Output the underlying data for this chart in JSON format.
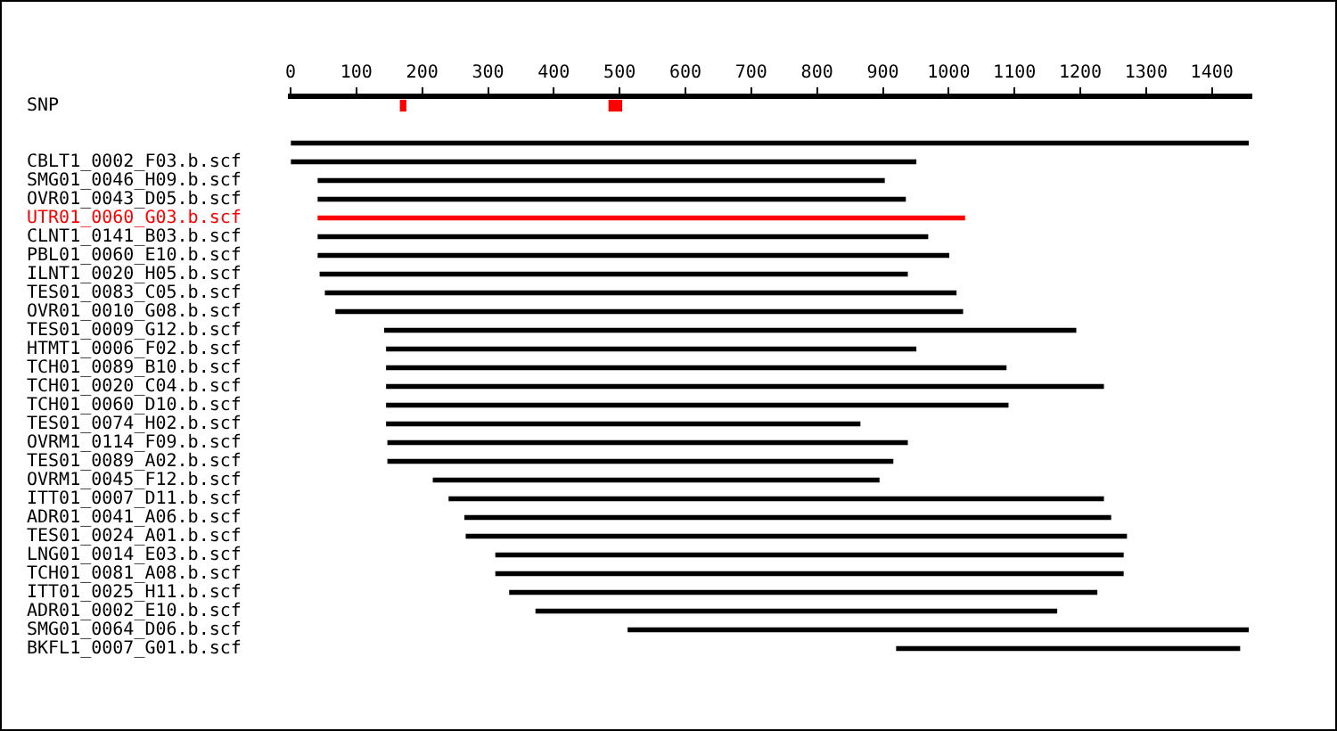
{
  "chart_data": {
    "type": "bar",
    "orientation": "horizontal",
    "grid": false,
    "legend": false,
    "categories": [
      "SNP",
      null,
      null,
      "CBLT1_0002_F03.b.scf",
      "SMG01_0046_H09.b.scf",
      "OVR01_0043_D05.b.scf",
      "UTR01_0060_G03.b.scf",
      "CLNT1_0141_B03.b.scf",
      "PBL01_0060_E10.b.scf",
      "ILNT1_0020_H05.b.scf",
      "TES01_0083_C05.b.scf",
      "OVR01_0010_G08.b.scf",
      "TES01_0009_G12.b.scf",
      "HTMT1_0006_F02.b.scf",
      "TCH01_0089_B10.b.scf",
      "TCH01_0020_C04.b.scf",
      "TCH01_0060_D10.b.scf",
      "TES01_0074_H02.b.scf",
      "OVRM1_0114_F09.b.scf",
      "TES01_0089_A02.b.scf",
      "OVRM1_0045_F12.b.scf",
      "ITT01_0007_D11.b.scf",
      "ADR01_0041_A06.b.scf",
      "TES01_0024_A01.b.scf",
      "LNG01_0014_E03.b.scf",
      "TCH01_0081_A08.b.scf",
      "ITT01_0025_H11.b.scf",
      "ADR01_0002_E10.b.scf",
      "SMG01_0064_D06.b.scf",
      "BKFL1_0007_G01.b.scf"
    ],
    "series": [
      {
        "colors": [
          "#000000",
          "#000000",
          "#000000",
          "#000000",
          "#000000",
          "#000000",
          "#ff0000",
          "#000000",
          "#000000",
          "#000000",
          "#000000",
          "#000000",
          "#000000",
          "#000000",
          "#000000",
          "#000000",
          "#000000",
          "#000000",
          "#000000",
          "#000000",
          "#000000",
          "#000000",
          "#000000",
          "#000000",
          "#000000",
          "#000000",
          "#000000",
          "#000000",
          "#000000",
          "#000000"
        ],
        "base": [
          null,
          null,
          0,
          0,
          42,
          42,
          42,
          42,
          42,
          45,
          53,
          69,
          143,
          146,
          146,
          146,
          146,
          146,
          148,
          148,
          217,
          241,
          265,
          267,
          312,
          312,
          333,
          373,
          513,
          921
        ],
        "values": [
          null,
          null,
          1455,
          950,
          860,
          892,
          982,
          926,
          958,
          892,
          958,
          952,
          1050,
          804,
          941,
          1089,
          944,
          719,
          789,
          767,
          677,
          994,
          981,
          1003,
          953,
          953,
          892,
          791,
          942,
          521
        ]
      },
      {
        "color": "#ff0000",
        "base": [
          167,
          null,
          null,
          null,
          null,
          null,
          null,
          null,
          null,
          null,
          null,
          null,
          null,
          null,
          null,
          null,
          null,
          null,
          null,
          null,
          null,
          null,
          null,
          null,
          null,
          null,
          null,
          null,
          null,
          null
        ],
        "values": [
          8,
          null,
          null,
          null,
          null,
          null,
          null,
          null,
          null,
          null,
          null,
          null,
          null,
          null,
          null,
          null,
          null,
          null,
          null,
          null,
          null,
          null,
          null,
          null,
          null,
          null,
          null,
          null,
          null,
          null
        ]
      },
      {
        "color": "#ff0000",
        "base": [
          484,
          null,
          null,
          null,
          null,
          null,
          null,
          null,
          null,
          null,
          null,
          null,
          null,
          null,
          null,
          null,
          null,
          null,
          null,
          null,
          null,
          null,
          null,
          null,
          null,
          null,
          null,
          null,
          null,
          null
        ],
        "values": [
          19,
          null,
          null,
          null,
          null,
          null,
          null,
          null,
          null,
          null,
          null,
          null,
          null,
          null,
          null,
          null,
          null,
          null,
          null,
          null,
          null,
          null,
          null,
          null,
          null,
          null,
          null,
          null,
          null,
          null
        ]
      }
    ],
    "xlim": [
      0,
      1460
    ],
    "xticks": [
      0,
      100,
      200,
      300,
      400,
      500,
      600,
      700,
      800,
      900,
      1000,
      1100,
      1200,
      1300,
      1400
    ]
  }
}
